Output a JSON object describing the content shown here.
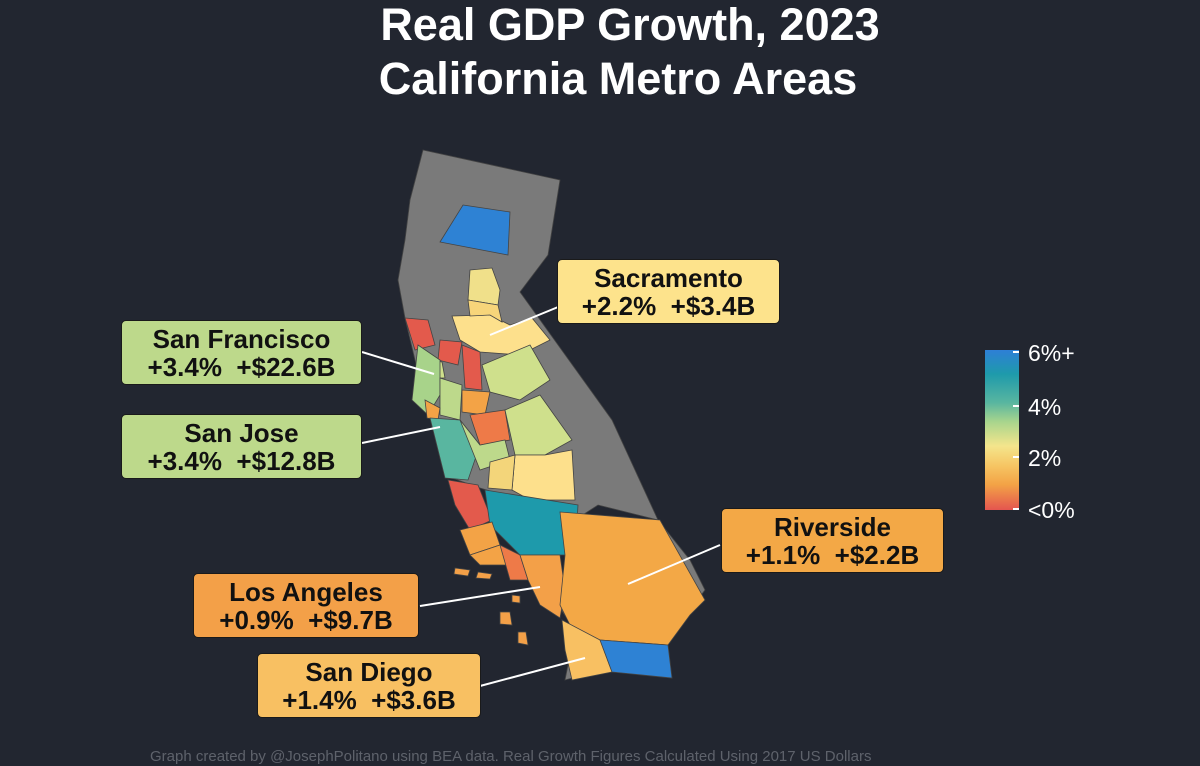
{
  "title": "Real GDP Growth, 2023",
  "subtitle": "California Metro Areas",
  "callouts": {
    "sacramento": {
      "name": "Sacramento",
      "values": "+2.2%  +$3.4B",
      "growth_pct": 2.2,
      "gdp_change_billion": 3.4,
      "color": "#fde38c"
    },
    "san_francisco": {
      "name": "San Francisco",
      "values": "+3.4%  +$22.6B",
      "growth_pct": 3.4,
      "gdp_change_billion": 22.6,
      "color": "#bdd98b"
    },
    "san_jose": {
      "name": "San Jose",
      "values": "+3.4%  +$12.8B",
      "growth_pct": 3.4,
      "gdp_change_billion": 12.8,
      "color": "#bdd98b"
    },
    "riverside": {
      "name": "Riverside",
      "values": "+1.1%  +$2.2B",
      "growth_pct": 1.1,
      "gdp_change_billion": 2.2,
      "color": "#f3a846"
    },
    "los_angeles": {
      "name": "Los Angeles",
      "values": "+0.9%  +$9.7B",
      "growth_pct": 0.9,
      "gdp_change_billion": 9.7,
      "color": "#f3a048"
    },
    "san_diego": {
      "name": "San Diego",
      "values": "+1.4%  +$3.6B",
      "growth_pct": 1.4,
      "gdp_change_billion": 3.6,
      "color": "#f8c062"
    }
  },
  "legend": {
    "labels": [
      "6%+",
      "4%",
      "2%",
      "<0%"
    ],
    "colors": [
      "#2e7fd6",
      "#1e9aab",
      "#59b6a0",
      "#a9d58d",
      "#f4e58c",
      "#f6c664",
      "#f3a346",
      "#e4554f"
    ]
  },
  "colors": {
    "background": "#222630",
    "non_metro": "#7a7a7a",
    "low": "#e4554f",
    "high": "#2e7fd6"
  },
  "footer": "Graph created by @JosephPolitano using BEA data. Real Growth Figures Calculated Using 2017 US Dollars"
}
